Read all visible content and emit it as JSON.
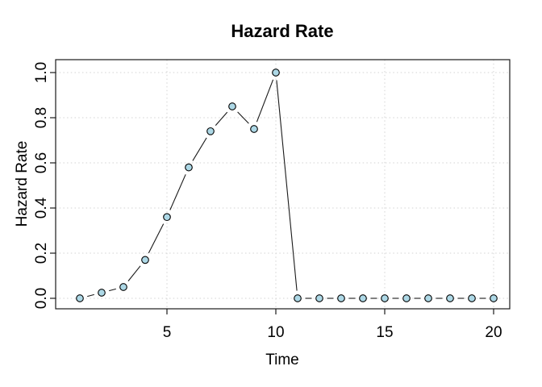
{
  "chart_data": {
    "type": "line",
    "title": "Hazard Rate",
    "xlabel": "Time",
    "ylabel": "Hazard Rate",
    "x": [
      1,
      2,
      3,
      4,
      5,
      6,
      7,
      8,
      9,
      10,
      11,
      12,
      13,
      14,
      15,
      16,
      17,
      18,
      19,
      20
    ],
    "y": [
      0.0,
      0.025,
      0.05,
      0.17,
      0.36,
      0.58,
      0.74,
      0.85,
      0.75,
      1.0,
      0.0,
      0.0,
      0.0,
      0.0,
      0.0,
      0.0,
      0.0,
      0.0,
      0.0,
      0.0
    ],
    "xlim": [
      1,
      20
    ],
    "ylim": [
      0.0,
      1.0
    ],
    "xticks": [
      5,
      10,
      15,
      20
    ],
    "xtick_labels": [
      "5",
      "10",
      "15",
      "20"
    ],
    "yticks": [
      0.0,
      0.2,
      0.4,
      0.6,
      0.8,
      1.0
    ],
    "ytick_labels": [
      "0.0",
      "0.2",
      "0.4",
      "0.6",
      "0.8",
      "1.0"
    ],
    "grid": true,
    "legend_position": "none",
    "style": {
      "marker": "circle",
      "marker_fill": "#add8e6",
      "marker_stroke": "#000000",
      "line_color": "#1a1a1a",
      "axis_color": "#1a1a1a",
      "grid_color": "#d3d3d3",
      "grid_line_style": "dotted",
      "background": "#ffffff",
      "draw_mode": "points-and-segments"
    }
  }
}
